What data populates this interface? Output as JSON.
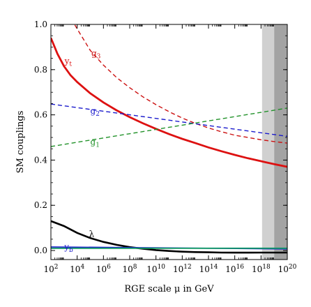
{
  "chart_data": {
    "type": "line",
    "xlabel": "RGE scale μ in GeV",
    "ylabel": "SM couplings",
    "xscale": "log10",
    "xlim": [
      100,
      1e+20
    ],
    "ylim": [
      -0.04,
      1.0
    ],
    "x_ticks": [
      {
        "value": 100,
        "base": "10",
        "exp": "2"
      },
      {
        "value": 10000,
        "base": "10",
        "exp": "4"
      },
      {
        "value": 1000000,
        "base": "10",
        "exp": "6"
      },
      {
        "value": 100000000,
        "base": "10",
        "exp": "8"
      },
      {
        "value": 10000000000,
        "base": "10",
        "exp": "10"
      },
      {
        "value": 1000000000000.0,
        "base": "10",
        "exp": "12"
      },
      {
        "value": 100000000000000.0,
        "base": "10",
        "exp": "14"
      },
      {
        "value": 1e+16,
        "base": "10",
        "exp": "16"
      },
      {
        "value": 1e+18,
        "base": "10",
        "exp": "18"
      },
      {
        "value": 1e+20,
        "base": "10",
        "exp": "20"
      }
    ],
    "y_ticks": [
      {
        "value": 0.0,
        "label": "0.0"
      },
      {
        "value": 0.2,
        "label": "0.2"
      },
      {
        "value": 0.4,
        "label": "0.4"
      },
      {
        "value": 0.6,
        "label": "0.6"
      },
      {
        "value": 0.8,
        "label": "0.8"
      },
      {
        "value": 1.0,
        "label": "1.0"
      }
    ],
    "grid": false,
    "shaded_regions": [
      {
        "from": 1.2e+18,
        "to": 1e+19,
        "color": "#d0d0d0"
      },
      {
        "from": 1e+19,
        "to": 1e+20,
        "color": "#a3a3a3"
      }
    ],
    "series": [
      {
        "name": "g3",
        "label_base": "g",
        "label_sub": "3",
        "color": "#cc1111",
        "dash": "6,4",
        "width": 1.4,
        "label_at": [
          120000,
          0.86
        ],
        "x": [
          100,
          1000,
          10000,
          100000,
          1000000,
          10000000,
          100000000,
          1000000000,
          10000000000,
          100000000000.0,
          1000000000000.0,
          10000000000000.0,
          100000000000000.0,
          1000000000000000.0,
          1e+16,
          1e+17,
          1e+18,
          1e+19,
          1e+20
        ],
        "values": [
          1.22,
          1.08,
          0.98,
          0.885,
          0.82,
          0.765,
          0.72,
          0.68,
          0.645,
          0.614,
          0.586,
          0.562,
          0.542,
          0.525,
          0.51,
          0.5,
          0.49,
          0.482,
          0.475
        ]
      },
      {
        "name": "yt",
        "label_base": "y",
        "label_sub": "t",
        "color": "#dd1111",
        "dash": "",
        "width": 2.8,
        "label_at": [
          1100,
          0.825
        ],
        "x": [
          100,
          316,
          1000,
          3162,
          10000,
          100000,
          1000000,
          10000000,
          100000000,
          1000000000,
          10000000000,
          100000000000.0,
          1000000000000.0,
          10000000000000.0,
          100000000000000.0,
          1000000000000000.0,
          1e+16,
          1e+17,
          1e+18,
          1e+19,
          1e+20
        ],
        "values": [
          0.94,
          0.87,
          0.815,
          0.775,
          0.745,
          0.695,
          0.655,
          0.62,
          0.59,
          0.563,
          0.538,
          0.515,
          0.494,
          0.475,
          0.456,
          0.439,
          0.423,
          0.408,
          0.395,
          0.382,
          0.37
        ]
      },
      {
        "name": "g2",
        "label_base": "g",
        "label_sub": "2",
        "color": "#1a1acc",
        "dash": "6,4",
        "width": 1.4,
        "label_at": [
          100000,
          0.605
        ],
        "x": [
          100,
          1e+20
        ],
        "values": [
          0.648,
          0.505
        ]
      },
      {
        "name": "g1",
        "label_base": "g",
        "label_sub": "1",
        "color": "#22922a",
        "dash": "6,4",
        "width": 1.4,
        "label_at": [
          100000,
          0.468
        ],
        "x": [
          100,
          1e+20
        ],
        "values": [
          0.46,
          0.63
        ]
      },
      {
        "name": "λ",
        "label_base": "λ",
        "label_sub": "",
        "color": "#000000",
        "dash": "",
        "width": 2.6,
        "label_at": [
          80000,
          0.06
        ],
        "x": [
          100,
          1000,
          10000,
          100000,
          1000000,
          10000000,
          100000000,
          1000000000,
          10000000000,
          100000000000.0,
          1000000000000.0,
          10000000000000.0,
          100000000000000.0,
          1000000000000000.0,
          1e+16,
          1e+17,
          1e+18,
          1e+19,
          1e+20
        ],
        "values": [
          0.13,
          0.108,
          0.078,
          0.055,
          0.038,
          0.025,
          0.015,
          0.008,
          0.002,
          -0.002,
          -0.005,
          -0.007,
          -0.008,
          -0.009,
          -0.0095,
          -0.0095,
          -0.009,
          -0.009,
          -0.009
        ]
      },
      {
        "name": "yb",
        "label_base": "y",
        "label_sub": "b",
        "color": "#1a1acc",
        "dash": "",
        "width": 1.6,
        "label_at": [
          1050,
          0.003
        ],
        "x": [
          100,
          1e+20
        ],
        "values": [
          0.016,
          0.007
        ]
      },
      {
        "name": "",
        "label_base": "",
        "label_sub": "",
        "color": "#119966",
        "dash": "",
        "width": 1.8,
        "label_at": null,
        "x": [
          100,
          1e+20
        ],
        "values": [
          0.01,
          0.01
        ]
      }
    ]
  }
}
